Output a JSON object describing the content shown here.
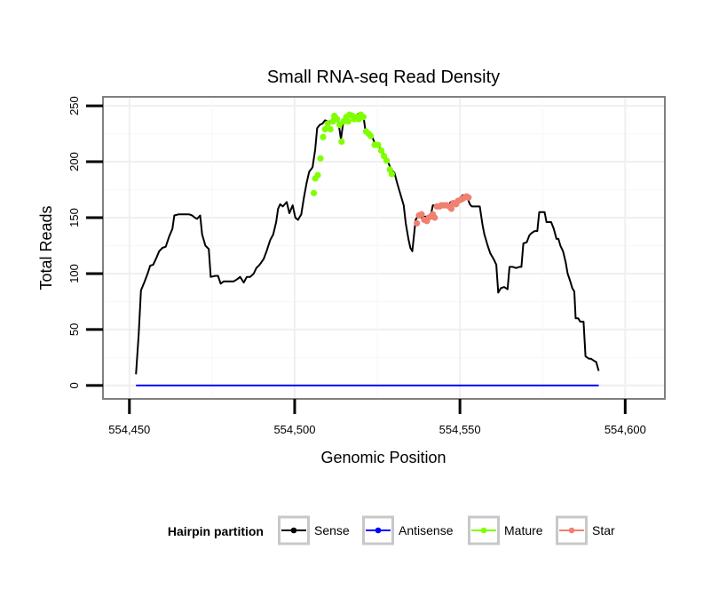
{
  "chart_data": {
    "type": "line",
    "title": "Small RNA-seq Read Density",
    "xlabel": "Genomic Position",
    "ylabel": "Total Reads",
    "xlim": [
      554442,
      554612
    ],
    "ylim": [
      -12,
      258
    ],
    "x_ticks": [
      554450,
      554500,
      554550,
      554600
    ],
    "x_tick_labels": [
      "554,450",
      "554,500",
      "554,550",
      "554,600"
    ],
    "y_ticks": [
      0,
      50,
      100,
      150,
      200,
      250
    ],
    "y_tick_labels": [
      "0",
      "50",
      "100",
      "150",
      "200",
      "250"
    ],
    "grid": true,
    "legend": {
      "title": "Hairpin partition",
      "position": "bottom",
      "entries": [
        "Sense",
        "Antisense",
        "Mature",
        "Star"
      ]
    },
    "series": [
      {
        "name": "Sense",
        "color": "#000000",
        "markers": false,
        "points": [
          [
            554452,
            10
          ],
          [
            554452.8,
            45
          ],
          [
            554453.5,
            85
          ],
          [
            554454.5,
            92
          ],
          [
            554455.5,
            100
          ],
          [
            554456.3,
            107
          ],
          [
            554457.2,
            108
          ],
          [
            554458,
            113
          ],
          [
            554459,
            120
          ],
          [
            554460,
            123
          ],
          [
            554461,
            124
          ],
          [
            554462,
            133
          ],
          [
            554463,
            140
          ],
          [
            554463.6,
            152
          ],
          [
            554465,
            153
          ],
          [
            554467,
            153
          ],
          [
            554468,
            153
          ],
          [
            554469,
            152
          ],
          [
            554469.8,
            150
          ],
          [
            554470.5,
            149
          ],
          [
            554471.4,
            152
          ],
          [
            554472,
            135
          ],
          [
            554473,
            125
          ],
          [
            554474,
            122
          ],
          [
            554474.6,
            97
          ],
          [
            554476,
            98
          ],
          [
            554476.8,
            98
          ],
          [
            554477.6,
            91
          ],
          [
            554478.5,
            93
          ],
          [
            554480,
            93
          ],
          [
            554481.5,
            93
          ],
          [
            554482.6,
            95
          ],
          [
            554483.5,
            97
          ],
          [
            554484.6,
            92
          ],
          [
            554485.5,
            97
          ],
          [
            554486.5,
            97
          ],
          [
            554487.6,
            100
          ],
          [
            554488.4,
            105
          ],
          [
            554489.4,
            108
          ],
          [
            554490.6,
            113
          ],
          [
            554491.5,
            120
          ],
          [
            554492.6,
            130
          ],
          [
            554493.5,
            135
          ],
          [
            554494.4,
            146
          ],
          [
            554495,
            158
          ],
          [
            554495.6,
            162
          ],
          [
            554496.4,
            160
          ],
          [
            554497.6,
            164
          ],
          [
            554498.4,
            154
          ],
          [
            554499.4,
            161
          ],
          [
            554500.2,
            150
          ],
          [
            554501,
            148
          ],
          [
            554502,
            153
          ],
          [
            554502.8,
            168
          ],
          [
            554503.6,
            181
          ],
          [
            554504.4,
            191
          ],
          [
            554505.4,
            195
          ],
          [
            554506.2,
            211
          ],
          [
            554506.8,
            230
          ],
          [
            554507.6,
            233
          ],
          [
            554508.4,
            234
          ],
          [
            554509.2,
            237
          ],
          [
            554510,
            236
          ],
          [
            554511,
            236
          ],
          [
            554512,
            241
          ],
          [
            554513,
            240
          ],
          [
            554514,
            220
          ],
          [
            554514.8,
            238
          ],
          [
            554515.6,
            241
          ],
          [
            554516.4,
            240
          ],
          [
            554517.4,
            243
          ],
          [
            554518.4,
            238
          ],
          [
            554519.2,
            243
          ],
          [
            554520,
            242
          ],
          [
            554520.8,
            241
          ],
          [
            554521.5,
            226
          ],
          [
            554522.5,
            226
          ],
          [
            554523.5,
            222
          ],
          [
            554524.3,
            216
          ],
          [
            554525.2,
            216
          ],
          [
            554526.2,
            210
          ],
          [
            554527.2,
            206
          ],
          [
            554528.2,
            200
          ],
          [
            554529.2,
            193
          ],
          [
            554530.2,
            190
          ],
          [
            554531,
            181
          ],
          [
            554532,
            171
          ],
          [
            554533,
            161
          ],
          [
            554533.6,
            145
          ],
          [
            554534.4,
            131
          ],
          [
            554535,
            123
          ],
          [
            554535.6,
            120
          ],
          [
            554536.6,
            148
          ],
          [
            554537.6,
            153
          ],
          [
            554538.4,
            150
          ],
          [
            554539.6,
            151
          ],
          [
            554540.6,
            151
          ],
          [
            554541.4,
            155
          ],
          [
            554541.8,
            161
          ],
          [
            554542.6,
            161
          ],
          [
            554543.4,
            161
          ],
          [
            554544.4,
            162
          ],
          [
            554545.4,
            162
          ],
          [
            554546.4,
            160
          ],
          [
            554547.2,
            164
          ],
          [
            554548,
            164
          ],
          [
            554549,
            165
          ],
          [
            554549.8,
            167
          ],
          [
            554550.8,
            170
          ],
          [
            554552,
            170
          ],
          [
            554553,
            162
          ],
          [
            554553.6,
            160
          ],
          [
            554554.4,
            160
          ],
          [
            554555.2,
            160
          ],
          [
            554556,
            160
          ],
          [
            554556.8,
            144
          ],
          [
            554557.4,
            135
          ],
          [
            554558.4,
            125
          ],
          [
            554559.2,
            118
          ],
          [
            554560.2,
            113
          ],
          [
            554561,
            108
          ],
          [
            554561.6,
            83
          ],
          [
            554562.4,
            87
          ],
          [
            554563.4,
            88
          ],
          [
            554564.4,
            86
          ],
          [
            554565,
            106
          ],
          [
            554566,
            106
          ],
          [
            554567,
            105
          ],
          [
            554568,
            106
          ],
          [
            554568.6,
            106
          ],
          [
            554569.2,
            127
          ],
          [
            554570.2,
            128
          ],
          [
            554571,
            134
          ],
          [
            554571.6,
            136
          ],
          [
            554572.6,
            138
          ],
          [
            554573.4,
            138
          ],
          [
            554574,
            155
          ],
          [
            554575,
            155
          ],
          [
            554575.6,
            155
          ],
          [
            554576.2,
            146
          ],
          [
            554577,
            146
          ],
          [
            554577.6,
            146
          ],
          [
            554578.4,
            140
          ],
          [
            554579.2,
            131
          ],
          [
            554579.8,
            131
          ],
          [
            554580.4,
            125
          ],
          [
            554581.2,
            120
          ],
          [
            554582,
            110
          ],
          [
            554582.6,
            100
          ],
          [
            554583.4,
            93
          ],
          [
            554584,
            87
          ],
          [
            554584.6,
            84
          ],
          [
            554585,
            60
          ],
          [
            554585.8,
            60
          ],
          [
            554586.4,
            57
          ],
          [
            554587.4,
            57
          ],
          [
            554588,
            26
          ],
          [
            554589,
            24
          ],
          [
            554589.6,
            24
          ],
          [
            554590.6,
            22
          ],
          [
            554591.2,
            21
          ],
          [
            554592,
            13
          ]
        ]
      },
      {
        "name": "Antisense",
        "color": "#0000ff",
        "markers": false,
        "points": [
          [
            554452,
            0
          ],
          [
            554592,
            0
          ]
        ]
      },
      {
        "name": "Mature",
        "color": "#7fff00",
        "markers": true,
        "points": [
          [
            554505.8,
            172
          ],
          [
            554506.2,
            185
          ],
          [
            554507,
            188
          ],
          [
            554507.8,
            203
          ],
          [
            554508.6,
            222
          ],
          [
            554509.2,
            229
          ],
          [
            554510,
            234
          ],
          [
            554510.8,
            229
          ],
          [
            554511.6,
            236
          ],
          [
            554512,
            241
          ],
          [
            554512.8,
            238
          ],
          [
            554513.6,
            233
          ],
          [
            554514.2,
            218
          ],
          [
            554514.8,
            236
          ],
          [
            554515.6,
            240
          ],
          [
            554516.2,
            236
          ],
          [
            554516.6,
            242
          ],
          [
            554517.4,
            241
          ],
          [
            554518,
            238
          ],
          [
            554518.8,
            240
          ],
          [
            554519.4,
            238
          ],
          [
            554520,
            242
          ],
          [
            554520.8,
            240
          ],
          [
            554521.6,
            227
          ],
          [
            554522.4,
            225
          ],
          [
            554523,
            223
          ],
          [
            554524.2,
            215
          ],
          [
            554525.2,
            215
          ],
          [
            554526.2,
            210
          ],
          [
            554527,
            205
          ],
          [
            554527.8,
            201
          ],
          [
            554528.8,
            193
          ],
          [
            554529.4,
            189
          ]
        ]
      },
      {
        "name": "Star",
        "color": "#f08070",
        "markers": true,
        "points": [
          [
            554537,
            145
          ],
          [
            554537.6,
            152
          ],
          [
            554538.4,
            153
          ],
          [
            554539.2,
            148
          ],
          [
            554540,
            147
          ],
          [
            554540.6,
            150
          ],
          [
            554541.2,
            151
          ],
          [
            554541.8,
            153
          ],
          [
            554542.4,
            150
          ],
          [
            554543,
            160
          ],
          [
            554543.8,
            160
          ],
          [
            554544.4,
            161
          ],
          [
            554545.2,
            161
          ],
          [
            554546,
            161
          ],
          [
            554546.8,
            160
          ],
          [
            554547.4,
            158
          ],
          [
            554548,
            163
          ],
          [
            554548.8,
            162
          ],
          [
            554549.4,
            165
          ],
          [
            554550.2,
            166
          ],
          [
            554550.8,
            167
          ],
          [
            554551.4,
            168
          ],
          [
            554552,
            169
          ],
          [
            554552.6,
            168
          ]
        ]
      }
    ]
  }
}
